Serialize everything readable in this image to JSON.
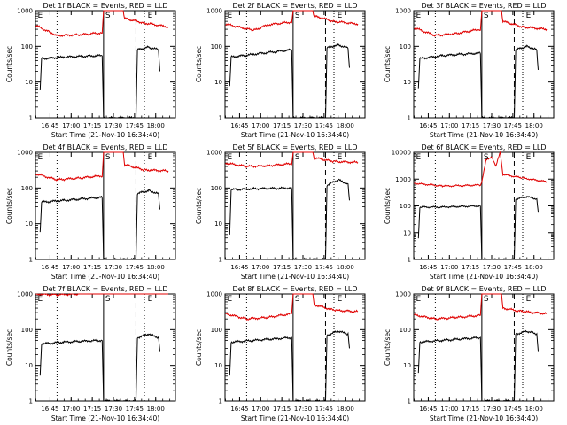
{
  "colors": {
    "events": "#000000",
    "lld": "#e00000",
    "background": "#ffffff"
  },
  "chart_data": [
    {
      "type": "line",
      "title": "Det 1f BLACK = Events, RED = LLD",
      "xlabel": "Start Time (21-Nov-10 16:34:40)",
      "ylabel": "Counts/sec",
      "y_scale": "log",
      "ylim": [
        1,
        1000
      ],
      "y_ticks": [
        "1",
        "10",
        "100",
        "1000"
      ],
      "x_ticks": [
        "16:45",
        "17:00",
        "17:15",
        "17:30",
        "17:45",
        "18:00"
      ],
      "xlim": [
        "16:34:40",
        "18:14"
      ],
      "markers": {
        "E": "16:35",
        "S": "17:23",
        "E2": "17:53"
      },
      "series": [
        {
          "color": "red",
          "points": [
            [
              "16:35",
              380
            ],
            [
              "16:50",
              200
            ],
            [
              "17:05",
              210
            ],
            [
              "17:22",
              240
            ],
            [
              "17:23",
              1000
            ],
            [
              "17:37",
              1000
            ],
            [
              "17:38",
              600
            ],
            [
              "17:52",
              450
            ],
            [
              "18:09",
              350
            ]
          ]
        },
        {
          "color": "black",
          "points": [
            [
              "16:38",
              6
            ],
            [
              "16:39",
              45
            ],
            [
              "16:55",
              50
            ],
            [
              "17:22",
              55
            ],
            [
              "17:23",
              1
            ],
            [
              "17:46",
              1
            ],
            [
              "17:47",
              80
            ],
            [
              "17:55",
              95
            ],
            [
              "18:02",
              80
            ],
            [
              "18:03",
              20
            ]
          ]
        }
      ]
    },
    {
      "type": "line",
      "title": "Det 2f BLACK = Events, RED = LLD",
      "xlabel": "Start Time (21-Nov-10 16:34:40)",
      "ylabel": "Counts/sec",
      "y_scale": "log",
      "ylim": [
        1,
        1000
      ],
      "y_ticks": [
        "1",
        "10",
        "100",
        "1000"
      ],
      "x_ticks": [
        "16:45",
        "17:00",
        "17:15",
        "17:30",
        "17:45",
        "18:00"
      ],
      "xlim": [
        "16:34:40",
        "18:14"
      ],
      "markers": {
        "E": "16:35",
        "S": "17:23",
        "E2": "17:53"
      },
      "series": [
        {
          "color": "red",
          "points": [
            [
              "16:35",
              420
            ],
            [
              "16:55",
              280
            ],
            [
              "17:05",
              400
            ],
            [
              "17:22",
              480
            ],
            [
              "17:23",
              1000
            ],
            [
              "17:37",
              1000
            ],
            [
              "17:38",
              700
            ],
            [
              "17:52",
              500
            ],
            [
              "18:09",
              420
            ]
          ]
        },
        {
          "color": "black",
          "points": [
            [
              "16:38",
              8
            ],
            [
              "16:39",
              50
            ],
            [
              "16:55",
              60
            ],
            [
              "17:22",
              80
            ],
            [
              "17:23",
              1
            ],
            [
              "17:46",
              1
            ],
            [
              "17:47",
              90
            ],
            [
              "17:55",
              110
            ],
            [
              "18:02",
              90
            ],
            [
              "18:03",
              25
            ]
          ]
        }
      ]
    },
    {
      "type": "line",
      "title": "Det 3f BLACK = Events, RED = LLD",
      "xlabel": "Start Time (21-Nov-10 16:34:40)",
      "ylabel": "Counts/sec",
      "y_scale": "log",
      "ylim": [
        1,
        1000
      ],
      "y_ticks": [
        "1",
        "10",
        "100",
        "1000"
      ],
      "x_ticks": [
        "16:45",
        "17:00",
        "17:15",
        "17:30",
        "17:45",
        "18:00"
      ],
      "xlim": [
        "16:34:40",
        "18:14"
      ],
      "markers": {
        "E": "16:35",
        "S": "17:23",
        "E2": "17:53"
      },
      "series": [
        {
          "color": "red",
          "points": [
            [
              "16:35",
              330
            ],
            [
              "16:50",
              200
            ],
            [
              "17:05",
              230
            ],
            [
              "17:22",
              300
            ],
            [
              "17:23",
              1000
            ],
            [
              "17:37",
              1000
            ],
            [
              "17:38",
              500
            ],
            [
              "17:52",
              350
            ],
            [
              "18:09",
              300
            ]
          ]
        },
        {
          "color": "black",
          "points": [
            [
              "16:38",
              7
            ],
            [
              "16:39",
              45
            ],
            [
              "16:55",
              55
            ],
            [
              "17:22",
              65
            ],
            [
              "17:23",
              1
            ],
            [
              "17:46",
              1
            ],
            [
              "17:47",
              80
            ],
            [
              "17:55",
              100
            ],
            [
              "18:02",
              80
            ],
            [
              "18:03",
              22
            ]
          ]
        }
      ]
    },
    {
      "type": "line",
      "title": "Det 4f BLACK = Events, RED = LLD",
      "xlabel": "Start Time (21-Nov-10 16:34:40)",
      "ylabel": "Counts/sec",
      "y_scale": "log",
      "ylim": [
        1,
        1000
      ],
      "y_ticks": [
        "1",
        "10",
        "100",
        "1000"
      ],
      "x_ticks": [
        "16:45",
        "17:00",
        "17:15",
        "17:30",
        "17:45",
        "18:00"
      ],
      "xlim": [
        "16:34:40",
        "18:14"
      ],
      "markers": {
        "E": "16:35",
        "S": "17:23",
        "E2": "17:53"
      },
      "series": [
        {
          "color": "red",
          "points": [
            [
              "16:35",
              250
            ],
            [
              "16:50",
              170
            ],
            [
              "17:05",
              190
            ],
            [
              "17:22",
              220
            ],
            [
              "17:23",
              1000
            ],
            [
              "17:37",
              1000
            ],
            [
              "17:38",
              450
            ],
            [
              "17:52",
              320
            ],
            [
              "18:09",
              300
            ]
          ]
        },
        {
          "color": "black",
          "points": [
            [
              "16:38",
              6
            ],
            [
              "16:39",
              40
            ],
            [
              "16:55",
              45
            ],
            [
              "17:22",
              55
            ],
            [
              "17:23",
              1
            ],
            [
              "17:46",
              1
            ],
            [
              "17:47",
              70
            ],
            [
              "17:55",
              85
            ],
            [
              "18:02",
              70
            ],
            [
              "18:03",
              25
            ]
          ]
        }
      ]
    },
    {
      "type": "line",
      "title": "Det 5f BLACK = Events, RED = LLD",
      "xlabel": "Start Time (21-Nov-10 16:34:40)",
      "ylabel": "Counts/sec",
      "y_scale": "log",
      "ylim": [
        1,
        1000
      ],
      "y_ticks": [
        "1",
        "10",
        "100",
        "1000"
      ],
      "x_ticks": [
        "16:45",
        "17:00",
        "17:15",
        "17:30",
        "17:45",
        "18:00"
      ],
      "xlim": [
        "16:34:40",
        "18:14"
      ],
      "markers": {
        "E": "16:35",
        "S": "17:23",
        "E2": "17:53"
      },
      "series": [
        {
          "color": "red",
          "points": [
            [
              "16:35",
              500
            ],
            [
              "16:50",
              400
            ],
            [
              "17:05",
              420
            ],
            [
              "17:22",
              480
            ],
            [
              "17:23",
              1000
            ],
            [
              "17:37",
              1000
            ],
            [
              "17:38",
              700
            ],
            [
              "17:52",
              550
            ],
            [
              "18:09",
              520
            ]
          ]
        },
        {
          "color": "black",
          "points": [
            [
              "16:38",
              5
            ],
            [
              "16:39",
              90
            ],
            [
              "16:55",
              95
            ],
            [
              "17:22",
              100
            ],
            [
              "17:23",
              1
            ],
            [
              "17:46",
              1
            ],
            [
              "17:47",
              120
            ],
            [
              "17:55",
              170
            ],
            [
              "18:02",
              130
            ],
            [
              "18:03",
              45
            ]
          ]
        }
      ]
    },
    {
      "type": "line",
      "title": "Det 6f BLACK = Events, RED = LLD",
      "xlabel": "Start Time (21-Nov-10 16:34:40)",
      "ylabel": "Counts/sec",
      "y_scale": "log",
      "ylim": [
        1,
        10000
      ],
      "y_ticks": [
        "1",
        "10",
        "100",
        "1000",
        "10000"
      ],
      "x_ticks": [
        "16:45",
        "17:00",
        "17:15",
        "17:30",
        "17:45",
        "18:00"
      ],
      "xlim": [
        "16:34:40",
        "18:14"
      ],
      "markers": {
        "E": "16:35",
        "S": "17:23",
        "E2": "17:53"
      },
      "series": [
        {
          "color": "red",
          "points": [
            [
              "16:35",
              700
            ],
            [
              "16:55",
              550
            ],
            [
              "17:05",
              560
            ],
            [
              "17:22",
              600
            ],
            [
              "17:23",
              800
            ],
            [
              "17:26",
              5000
            ],
            [
              "17:30",
              7000
            ],
            [
              "17:33",
              3000
            ],
            [
              "17:36",
              10000
            ],
            [
              "17:38",
              1500
            ],
            [
              "17:52",
              1100
            ],
            [
              "18:09",
              800
            ]
          ]
        },
        {
          "color": "black",
          "points": [
            [
              "16:38",
              6
            ],
            [
              "16:39",
              90
            ],
            [
              "16:55",
              90
            ],
            [
              "17:22",
              100
            ],
            [
              "17:23",
              1
            ],
            [
              "17:46",
              1
            ],
            [
              "17:47",
              180
            ],
            [
              "17:55",
              220
            ],
            [
              "18:02",
              180
            ],
            [
              "18:03",
              60
            ]
          ]
        }
      ]
    },
    {
      "type": "line",
      "title": "Det 7f BLACK = Events, RED = LLD",
      "xlabel": "Start Time (21-Nov-10 16:34:40)",
      "ylabel": "Counts/sec",
      "y_scale": "log",
      "ylim": [
        1,
        1000
      ],
      "y_ticks": [
        "1",
        "10",
        "100",
        "1000"
      ],
      "x_ticks": [
        "16:45",
        "17:00",
        "17:15",
        "17:30",
        "17:45",
        "18:00"
      ],
      "xlim": [
        "16:34:40",
        "18:14"
      ],
      "markers": {
        "E": "16:35",
        "S": "17:23",
        "E2": "17:53"
      },
      "series": [
        {
          "color": "red",
          "points": [
            [
              "16:35",
              1000
            ],
            [
              "16:50",
              950
            ],
            [
              "17:05",
              1000
            ],
            [
              "17:22",
              1000
            ],
            [
              "17:23",
              1000
            ],
            [
              "17:37",
              1000
            ],
            [
              "17:38",
              1000
            ],
            [
              "17:52",
              1000
            ],
            [
              "18:09",
              1000
            ]
          ]
        },
        {
          "color": "black",
          "points": [
            [
              "16:38",
              5
            ],
            [
              "16:39",
              40
            ],
            [
              "16:55",
              45
            ],
            [
              "17:22",
              50
            ],
            [
              "17:23",
              1
            ],
            [
              "17:46",
              1
            ],
            [
              "17:47",
              60
            ],
            [
              "17:55",
              75
            ],
            [
              "18:02",
              60
            ],
            [
              "18:03",
              25
            ]
          ]
        }
      ]
    },
    {
      "type": "line",
      "title": "Det 8f BLACK = Events, RED = LLD",
      "xlabel": "Start Time (21-Nov-10 16:34:40)",
      "ylabel": "Counts/sec",
      "y_scale": "log",
      "ylim": [
        1,
        1000
      ],
      "y_ticks": [
        "1",
        "10",
        "100",
        "1000"
      ],
      "x_ticks": [
        "16:45",
        "17:00",
        "17:15",
        "17:30",
        "17:45",
        "18:00"
      ],
      "xlim": [
        "16:34:40",
        "18:14"
      ],
      "markers": {
        "E": "16:35",
        "S": "17:23",
        "E2": "17:53"
      },
      "series": [
        {
          "color": "red",
          "points": [
            [
              "16:35",
              280
            ],
            [
              "16:50",
              200
            ],
            [
              "17:05",
              220
            ],
            [
              "17:22",
              280
            ],
            [
              "17:23",
              1000
            ],
            [
              "17:37",
              1000
            ],
            [
              "17:38",
              500
            ],
            [
              "17:52",
              350
            ],
            [
              "18:09",
              320
            ]
          ]
        },
        {
          "color": "black",
          "points": [
            [
              "16:38",
              5
            ],
            [
              "16:39",
              45
            ],
            [
              "16:55",
              50
            ],
            [
              "17:22",
              60
            ],
            [
              "17:23",
              1
            ],
            [
              "17:46",
              1
            ],
            [
              "17:47",
              70
            ],
            [
              "17:55",
              90
            ],
            [
              "18:02",
              75
            ],
            [
              "18:03",
              30
            ]
          ]
        }
      ]
    },
    {
      "type": "line",
      "title": "Det 9f BLACK = Events, RED = LLD",
      "xlabel": "Start Time (21-Nov-10 16:34:40)",
      "ylabel": "Counts/sec",
      "y_scale": "log",
      "ylim": [
        1,
        1000
      ],
      "y_ticks": [
        "1",
        "10",
        "100",
        "1000"
      ],
      "x_ticks": [
        "16:45",
        "17:00",
        "17:15",
        "17:30",
        "17:45",
        "18:00"
      ],
      "xlim": [
        "16:34:40",
        "18:14"
      ],
      "markers": {
        "E": "16:35",
        "S": "17:23",
        "E2": "17:53"
      },
      "series": [
        {
          "color": "red",
          "points": [
            [
              "16:35",
              260
            ],
            [
              "16:50",
              200
            ],
            [
              "17:05",
              220
            ],
            [
              "17:22",
              250
            ],
            [
              "17:23",
              1000
            ],
            [
              "17:37",
              1000
            ],
            [
              "17:38",
              400
            ],
            [
              "17:52",
              320
            ],
            [
              "18:09",
              280
            ]
          ]
        },
        {
          "color": "black",
          "points": [
            [
              "16:38",
              6
            ],
            [
              "16:39",
              45
            ],
            [
              "16:55",
              50
            ],
            [
              "17:22",
              60
            ],
            [
              "17:23",
              1
            ],
            [
              "17:46",
              1
            ],
            [
              "17:47",
              75
            ],
            [
              "17:55",
              90
            ],
            [
              "18:02",
              75
            ],
            [
              "18:03",
              25
            ]
          ]
        }
      ]
    }
  ]
}
